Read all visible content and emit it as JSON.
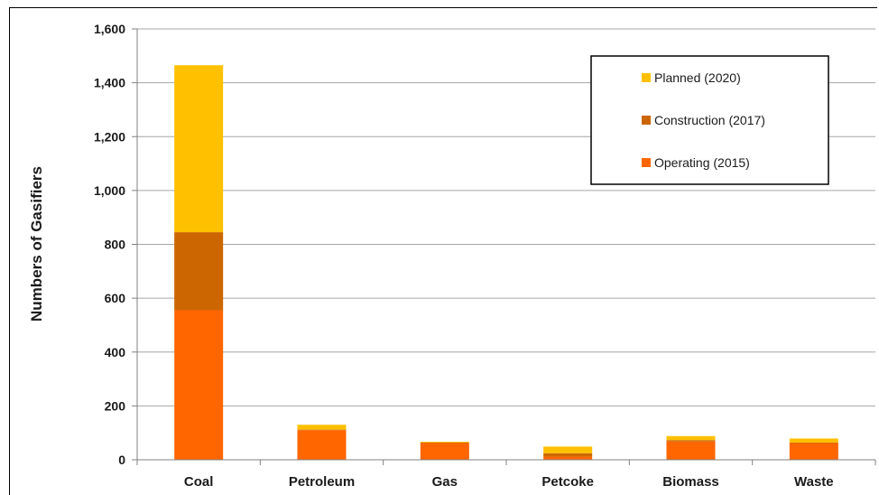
{
  "chart_data": {
    "type": "bar",
    "stacked": true,
    "title": "",
    "xlabel": "",
    "ylabel": "Numbers of Gasifiers",
    "ylim": [
      0,
      1600
    ],
    "yticks": [
      0,
      200,
      400,
      600,
      800,
      1000,
      1200,
      1400,
      1600
    ],
    "ytick_labels": [
      "0",
      "200",
      "400",
      "600",
      "800",
      "1,000",
      "1,200",
      "1,400",
      "1,600"
    ],
    "grid": true,
    "legend_position": "top-right",
    "categories": [
      "Coal",
      "Petroleum",
      "Gas",
      "Petcoke",
      "Biomass",
      "Waste"
    ],
    "series": [
      {
        "name": "Operating (2015)",
        "color": "#ff6600",
        "values": [
          555,
          110,
          62,
          12,
          68,
          62
        ]
      },
      {
        "name": "Construction (2017)",
        "color": "#cc6600",
        "values": [
          290,
          2,
          2,
          12,
          5,
          2
        ]
      },
      {
        "name": "Planned (2020)",
        "color": "#ffc000",
        "values": [
          620,
          18,
          3,
          25,
          15,
          15
        ]
      }
    ],
    "legend_order": [
      2,
      1,
      0
    ]
  }
}
